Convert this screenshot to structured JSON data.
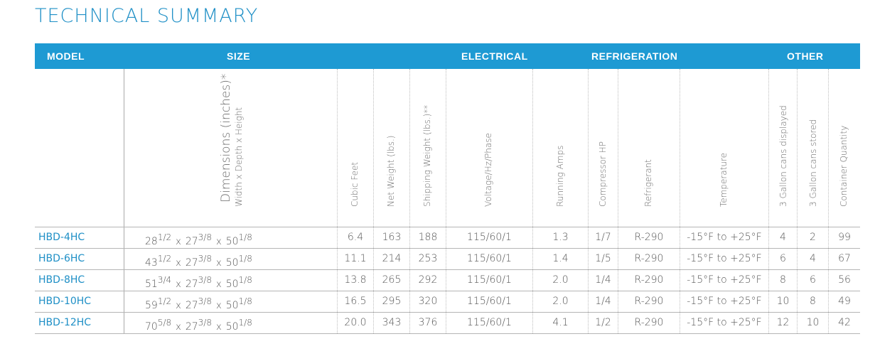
{
  "title": "TECHNICAL SUMMARY",
  "colors": {
    "accent": "#1e9ad3",
    "model_text": "#1e8fc6"
  },
  "groups": {
    "model": "MODEL",
    "size": "SIZE",
    "electrical": "ELECTRICAL",
    "refrigeration": "REFRIGERATION",
    "other": "OTHER"
  },
  "headers": {
    "dimensions": "Dimensions (inches)*",
    "dimensions_sub": "Width x Depth x Height",
    "cubic_feet": "Cubic Feet",
    "net_weight": "Net Weight (lbs.)",
    "shipping_weight": "Shipping Weight (lbs.)**",
    "voltage": "Voltage/Hz/Phase",
    "running_amps": "Running Amps",
    "compressor_hp": "Compressor HP",
    "refrigerant": "Refrigerant",
    "temperature": "Temperature",
    "cans_displayed": "3 Gallon cans displayed",
    "cans_stored": "3 Gallon cans stored",
    "container_qty": "Container Quantity"
  },
  "dim_sep": "x",
  "rows": [
    {
      "model": "HBD-4HC",
      "w": "28",
      "wf": "1/2",
      "d": "27",
      "df": "3/8",
      "h": "50",
      "hf": "1/8",
      "cubic_feet": "6.4",
      "net": "163",
      "ship": "188",
      "voltage": "115/60/1",
      "amps": "1.3",
      "hp": "1/7",
      "refrigerant": "R-290",
      "temp": "-15°F to +25°F",
      "displayed": "4",
      "stored": "2",
      "qty": "99"
    },
    {
      "model": "HBD-6HC",
      "w": "43",
      "wf": "1/2",
      "d": "27",
      "df": "3/8",
      "h": "50",
      "hf": "1/8",
      "cubic_feet": "11.1",
      "net": "214",
      "ship": "253",
      "voltage": "115/60/1",
      "amps": "1.4",
      "hp": "1/5",
      "refrigerant": "R-290",
      "temp": "-15°F to +25°F",
      "displayed": "6",
      "stored": "4",
      "qty": "67"
    },
    {
      "model": "HBD-8HC",
      "w": "51",
      "wf": "3/4",
      "d": "27",
      "df": "3/8",
      "h": "50",
      "hf": "1/8",
      "cubic_feet": "13.8",
      "net": "265",
      "ship": "292",
      "voltage": "115/60/1",
      "amps": "2.0",
      "hp": "1/4",
      "refrigerant": "R-290",
      "temp": "-15°F to +25°F",
      "displayed": "8",
      "stored": "6",
      "qty": "56"
    },
    {
      "model": "HBD-10HC",
      "w": "59",
      "wf": "1/2",
      "d": "27",
      "df": "3/8",
      "h": "50",
      "hf": "1/8",
      "cubic_feet": "16.5",
      "net": "295",
      "ship": "320",
      "voltage": "115/60/1",
      "amps": "2.0",
      "hp": "1/4",
      "refrigerant": "R-290",
      "temp": "-15°F to +25°F",
      "displayed": "10",
      "stored": "8",
      "qty": "49"
    },
    {
      "model": "HBD-12HC",
      "w": "70",
      "wf": "5/8",
      "d": "27",
      "df": "3/8",
      "h": "50",
      "hf": "1/8",
      "cubic_feet": "20.0",
      "net": "343",
      "ship": "376",
      "voltage": "115/60/1",
      "amps": "4.1",
      "hp": "1/2",
      "refrigerant": "R-290",
      "temp": "-15°F to +25°F",
      "displayed": "12",
      "stored": "10",
      "qty": "42"
    }
  ]
}
